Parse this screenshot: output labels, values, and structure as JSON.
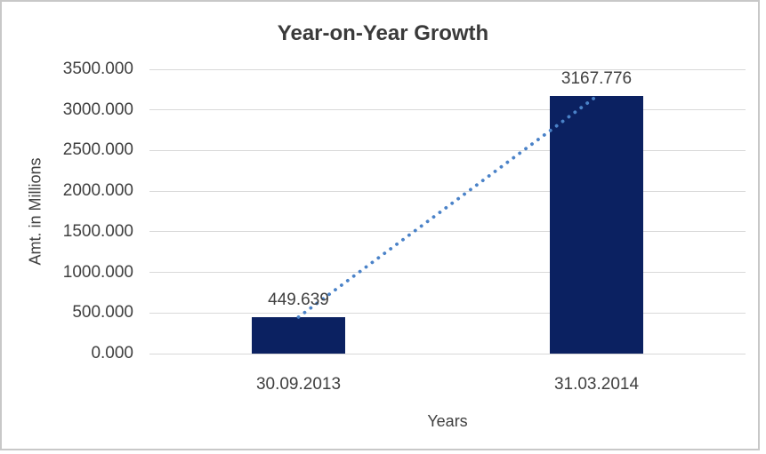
{
  "chart_data": {
    "type": "bar",
    "title": "Year-on-Year Growth",
    "categories": [
      "30.09.2013",
      "31.03.2014"
    ],
    "values": [
      449.639,
      3167.776
    ],
    "data_labels": [
      "449.639",
      "3167.776"
    ],
    "xlabel": "Years",
    "ylabel": "Amt. in Millions",
    "ylim": [
      0,
      3500
    ],
    "ytick_step": 500,
    "ytick_labels": [
      "3500.000",
      "3000.000",
      "2500.000",
      "2000.000",
      "1500.000",
      "1000.000",
      "500.000",
      "0.000"
    ],
    "grid": true,
    "legend": false,
    "trendline": {
      "type": "linear",
      "style": "round-dotted",
      "connects": "tops of bars from 449.639 to 3167.776"
    },
    "colors": {
      "bar": "#0b2161",
      "trendline": "#4a82c8",
      "gridline": "#d9d9d9",
      "axis_text": "#404040",
      "title_text": "#3a3a3a",
      "border": "#c8c8c8",
      "background": "#ffffff"
    }
  }
}
